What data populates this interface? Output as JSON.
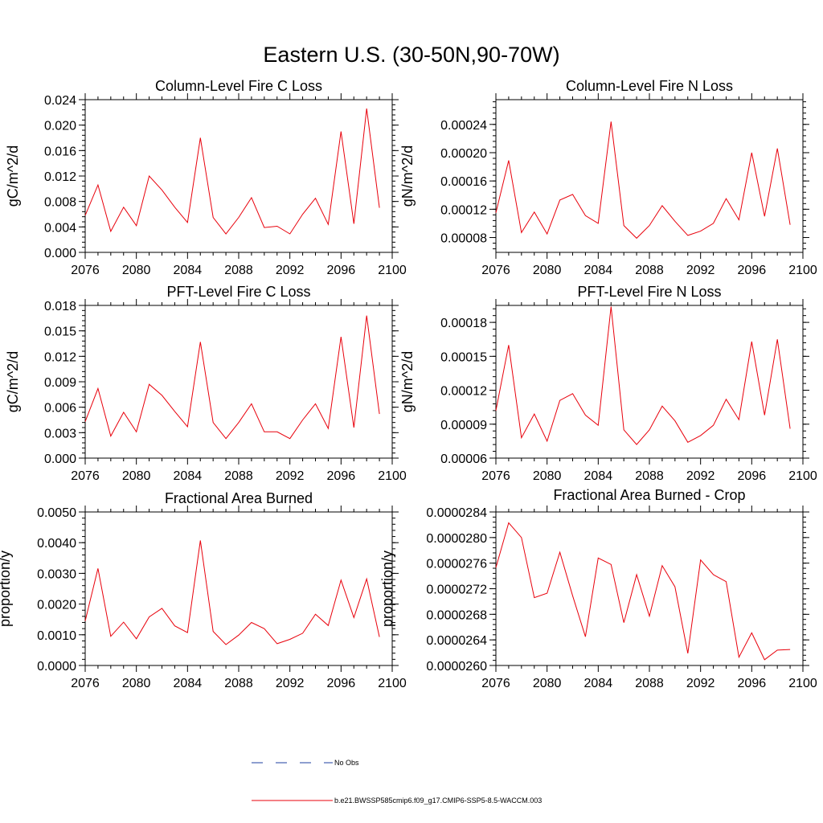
{
  "page_title": "Eastern U.S. (30-50N,90-70W)",
  "colors": {
    "model_line": "#e8000b",
    "obs_line": "#1e3fa0",
    "axis": "#000000"
  },
  "legend": {
    "obs_label": "No Obs",
    "model_label": "b.e21.BWSSP585cmip6.f09_g17.CMIP6-SSP5-8.5-WACCM.003"
  },
  "chart_data": [
    {
      "type": "line",
      "title": "Column-Level Fire C Loss",
      "ylabel": "gC/m^2/d",
      "xlim": [
        2076,
        2100
      ],
      "ylim": [
        0.0,
        0.024
      ],
      "xticks": [
        "2076",
        "2080",
        "2084",
        "2088",
        "2092",
        "2096",
        "2100"
      ],
      "yticks": [
        "0.000",
        "0.004",
        "0.008",
        "0.012",
        "0.016",
        "0.020",
        "0.024"
      ],
      "x": [
        2076,
        2077,
        2078,
        2079,
        2080,
        2081,
        2082,
        2083,
        2084,
        2085,
        2086,
        2087,
        2088,
        2089,
        2090,
        2091,
        2092,
        2093,
        2094,
        2095,
        2096,
        2097,
        2098,
        2099
      ],
      "values": [
        0.0058,
        0.0106,
        0.0033,
        0.0071,
        0.0042,
        0.012,
        0.0098,
        0.0071,
        0.0047,
        0.018,
        0.0055,
        0.0029,
        0.0055,
        0.0086,
        0.0039,
        0.0041,
        0.0029,
        0.006,
        0.0085,
        0.0044,
        0.019,
        0.0045,
        0.0226,
        0.007
      ]
    },
    {
      "type": "line",
      "title": "Column-Level Fire N Loss",
      "ylabel": "gN/m^2/d",
      "xlim": [
        2076,
        2100
      ],
      "ylim": [
        5.9e-05,
        0.000275
      ],
      "xticks": [
        "2076",
        "2080",
        "2084",
        "2088",
        "2092",
        "2096",
        "2100"
      ],
      "yticks": [
        "0.00008",
        "0.00012",
        "0.00016",
        "0.00020",
        "0.00024"
      ],
      "ytick_values": [
        8e-05,
        0.00012,
        0.00016,
        0.0002,
        0.00024
      ],
      "x": [
        2076,
        2077,
        2078,
        2079,
        2080,
        2081,
        2082,
        2083,
        2084,
        2085,
        2086,
        2087,
        2088,
        2089,
        2090,
        2091,
        2092,
        2093,
        2094,
        2095,
        2096,
        2097,
        2098,
        2099
      ],
      "values": [
        0.000115,
        0.000189,
        8.7e-05,
        0.000116,
        8.5e-05,
        0.000133,
        0.000141,
        0.000111,
        0.0001,
        0.000244,
        9.7e-05,
        7.9e-05,
        9.7e-05,
        0.000125,
        0.000103,
        8.3e-05,
        8.9e-05,
        0.0001,
        0.000135,
        0.000105,
        0.0002,
        0.00011,
        0.000206,
        9.8e-05
      ]
    },
    {
      "type": "line",
      "title": "PFT-Level Fire C Loss",
      "ylabel": "gC/m^2/d",
      "xlim": [
        2076,
        2100
      ],
      "ylim": [
        0.0,
        0.018
      ],
      "xticks": [
        "2076",
        "2080",
        "2084",
        "2088",
        "2092",
        "2096",
        "2100"
      ],
      "yticks": [
        "0.000",
        "0.003",
        "0.006",
        "0.009",
        "0.012",
        "0.015",
        "0.018"
      ],
      "x": [
        2076,
        2077,
        2078,
        2079,
        2080,
        2081,
        2082,
        2083,
        2084,
        2085,
        2086,
        2087,
        2088,
        2089,
        2090,
        2091,
        2092,
        2093,
        2094,
        2095,
        2096,
        2097,
        2098,
        2099
      ],
      "values": [
        0.0043,
        0.0082,
        0.0026,
        0.0054,
        0.0031,
        0.0087,
        0.0074,
        0.0055,
        0.0037,
        0.0137,
        0.0042,
        0.0023,
        0.0042,
        0.0064,
        0.0031,
        0.0031,
        0.0023,
        0.0045,
        0.0064,
        0.0035,
        0.0143,
        0.0036,
        0.0168,
        0.0052
      ]
    },
    {
      "type": "line",
      "title": "PFT-Level Fire N Loss",
      "ylabel": "gN/m^2/d",
      "xlim": [
        2076,
        2100
      ],
      "ylim": [
        6e-05,
        0.000195
      ],
      "xticks": [
        "2076",
        "2080",
        "2084",
        "2088",
        "2092",
        "2096",
        "2100"
      ],
      "yticks": [
        "0.00006",
        "0.00009",
        "0.00012",
        "0.00015",
        "0.00018"
      ],
      "ytick_values": [
        6e-05,
        9e-05,
        0.00012,
        0.00015,
        0.00018
      ],
      "x": [
        2076,
        2077,
        2078,
        2079,
        2080,
        2081,
        2082,
        2083,
        2084,
        2085,
        2086,
        2087,
        2088,
        2089,
        2090,
        2091,
        2092,
        2093,
        2094,
        2095,
        2096,
        2097,
        2098,
        2099
      ],
      "values": [
        0.000102,
        0.00016,
        7.8e-05,
        9.9e-05,
        7.5e-05,
        0.000111,
        0.000117,
        9.8e-05,
        8.9e-05,
        0.000194,
        8.5e-05,
        7.2e-05,
        8.5e-05,
        0.000106,
        9.3e-05,
        7.4e-05,
        8e-05,
        8.9e-05,
        0.000112,
        9.4e-05,
        0.000163,
        9.8e-05,
        0.000165,
        8.6e-05
      ]
    },
    {
      "type": "line",
      "title": "Fractional Area Burned",
      "ylabel": "proportion/y",
      "xlim": [
        2076,
        2100
      ],
      "ylim": [
        0.0,
        0.005
      ],
      "xticks": [
        "2076",
        "2080",
        "2084",
        "2088",
        "2092",
        "2096",
        "2100"
      ],
      "yticks": [
        "0.0000",
        "0.0010",
        "0.0020",
        "0.0030",
        "0.0040",
        "0.0050"
      ],
      "x": [
        2076,
        2077,
        2078,
        2079,
        2080,
        2081,
        2082,
        2083,
        2084,
        2085,
        2086,
        2087,
        2088,
        2089,
        2090,
        2091,
        2092,
        2093,
        2094,
        2095,
        2096,
        2097,
        2098,
        2099
      ],
      "values": [
        0.00145,
        0.00316,
        0.00095,
        0.00141,
        0.00087,
        0.00158,
        0.00186,
        0.00129,
        0.00107,
        0.00407,
        0.00111,
        0.00068,
        0.00099,
        0.0014,
        0.0012,
        0.00071,
        0.00085,
        0.00105,
        0.00167,
        0.0013,
        0.00278,
        0.00156,
        0.00282,
        0.00093
      ]
    },
    {
      "type": "line",
      "title": "Fractional Area Burned - Crop",
      "ylabel": "proportion/y",
      "xlim": [
        2076,
        2100
      ],
      "ylim": [
        2.6e-05,
        2.84e-05
      ],
      "xticks": [
        "2076",
        "2080",
        "2084",
        "2088",
        "2092",
        "2096",
        "2100"
      ],
      "yticks": [
        "0.0000260",
        "0.0000264",
        "0.0000268",
        "0.0000272",
        "0.0000276",
        "0.0000280",
        "0.0000284"
      ],
      "ytick_values": [
        2.6e-05,
        2.64e-05,
        2.68e-05,
        2.72e-05,
        2.76e-05,
        2.8e-05,
        2.84e-05
      ],
      "x": [
        2076,
        2077,
        2078,
        2079,
        2080,
        2081,
        2082,
        2083,
        2084,
        2085,
        2086,
        2087,
        2088,
        2089,
        2090,
        2091,
        2092,
        2093,
        2094,
        2095,
        2096,
        2097,
        2098,
        2099
      ],
      "values": [
        2.753e-05,
        2.823e-05,
        2.8e-05,
        2.706e-05,
        2.713e-05,
        2.777e-05,
        2.709e-05,
        2.645e-05,
        2.768e-05,
        2.758e-05,
        2.667e-05,
        2.742e-05,
        2.677e-05,
        2.756e-05,
        2.723e-05,
        2.619e-05,
        2.765e-05,
        2.742e-05,
        2.731e-05,
        2.613e-05,
        2.651e-05,
        2.609e-05,
        2.624e-05,
        2.625e-05
      ]
    }
  ]
}
